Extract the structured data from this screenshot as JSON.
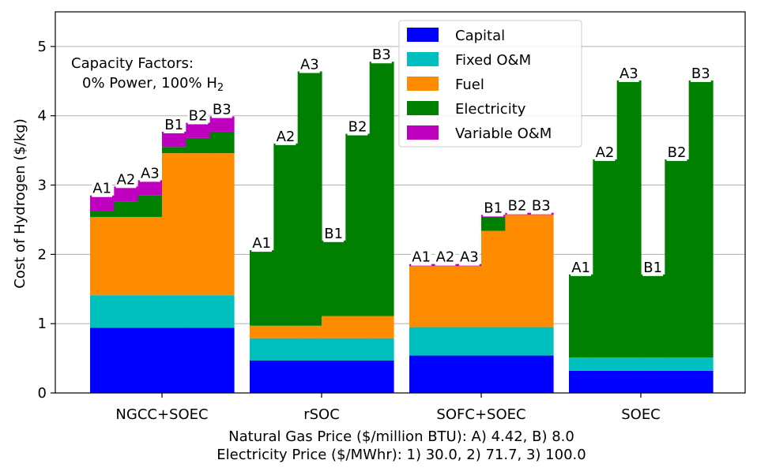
{
  "chart_data": {
    "type": "bar",
    "stacked": true,
    "ylabel": "Cost of Hydrogen ($/kg)",
    "xlabel_lines": [
      "Natural Gas Price ($/million BTU): A) 4.42, B) 8.0",
      "Electricity Price ($/MWhr): 1) 30.0, 2) 71.7, 3) 100.0"
    ],
    "ylim": [
      0,
      5.5
    ],
    "yticks": [
      0,
      1,
      2,
      3,
      4,
      5
    ],
    "grid": "y",
    "legend_position": "top-center",
    "annotation": {
      "line1": "Capacity Factors:",
      "line2_prefix": "0% Power, 100% H",
      "line2_sub": "2"
    },
    "components": [
      {
        "name": "Capital",
        "color": "#0000ff"
      },
      {
        "name": "Fixed O&M",
        "color": "#00bfbf"
      },
      {
        "name": "Fuel",
        "color": "#ff8c00"
      },
      {
        "name": "Electricity",
        "color": "#008000"
      },
      {
        "name": "Variable O&M",
        "color": "#bf00bf"
      }
    ],
    "groups": [
      {
        "name": "NGCC+SOEC",
        "scenarios": [
          {
            "label": "A1",
            "values": [
              0.94,
              0.47,
              1.13,
              0.09,
              0.22
            ]
          },
          {
            "label": "A2",
            "values": [
              0.94,
              0.47,
              1.13,
              0.22,
              0.22
            ]
          },
          {
            "label": "A3",
            "values": [
              0.94,
              0.47,
              1.13,
              0.31,
              0.22
            ]
          },
          {
            "label": "B1",
            "values": [
              0.94,
              0.47,
              2.05,
              0.09,
              0.22
            ]
          },
          {
            "label": "B2",
            "values": [
              0.94,
              0.47,
              2.05,
              0.22,
              0.22
            ]
          },
          {
            "label": "B3",
            "values": [
              0.94,
              0.47,
              2.05,
              0.31,
              0.22
            ]
          }
        ]
      },
      {
        "name": "rSOC",
        "scenarios": [
          {
            "label": "A1",
            "values": [
              0.47,
              0.32,
              0.18,
              1.09,
              0.0
            ]
          },
          {
            "label": "A2",
            "values": [
              0.47,
              0.32,
              0.18,
              2.63,
              0.0
            ]
          },
          {
            "label": "A3",
            "values": [
              0.47,
              0.32,
              0.18,
              3.67,
              0.0
            ]
          },
          {
            "label": "B1",
            "values": [
              0.47,
              0.32,
              0.32,
              1.09,
              0.0
            ]
          },
          {
            "label": "B2",
            "values": [
              0.47,
              0.32,
              0.32,
              2.63,
              0.0
            ]
          },
          {
            "label": "B3",
            "values": [
              0.47,
              0.32,
              0.32,
              3.67,
              0.0
            ]
          }
        ]
      },
      {
        "name": "SOFC+SOEC",
        "scenarios": [
          {
            "label": "A1",
            "values": [
              0.54,
              0.41,
              0.88,
              0.0,
              0.03
            ]
          },
          {
            "label": "A2",
            "values": [
              0.54,
              0.41,
              0.88,
              0.0,
              0.03
            ]
          },
          {
            "label": "A3",
            "values": [
              0.54,
              0.41,
              0.88,
              0.0,
              0.03
            ]
          },
          {
            "label": "B1",
            "values": [
              0.54,
              0.41,
              1.39,
              0.2,
              0.03
            ]
          },
          {
            "label": "B2",
            "values": [
              0.54,
              0.41,
              1.62,
              0.0,
              0.03
            ]
          },
          {
            "label": "B3",
            "values": [
              0.54,
              0.41,
              1.62,
              0.0,
              0.03
            ]
          }
        ]
      },
      {
        "name": "SOEC",
        "scenarios": [
          {
            "label": "A1",
            "values": [
              0.32,
              0.19,
              0.0,
              1.2,
              0.0
            ]
          },
          {
            "label": "A2",
            "values": [
              0.32,
              0.19,
              0.0,
              2.86,
              0.0
            ]
          },
          {
            "label": "A3",
            "values": [
              0.32,
              0.19,
              0.0,
              4.0,
              0.0
            ]
          },
          {
            "label": "B1",
            "values": [
              0.32,
              0.19,
              0.0,
              1.2,
              0.0
            ]
          },
          {
            "label": "B2",
            "values": [
              0.32,
              0.19,
              0.0,
              2.86,
              0.0
            ]
          },
          {
            "label": "B3",
            "values": [
              0.32,
              0.19,
              0.0,
              4.0,
              0.0
            ]
          }
        ]
      }
    ]
  }
}
